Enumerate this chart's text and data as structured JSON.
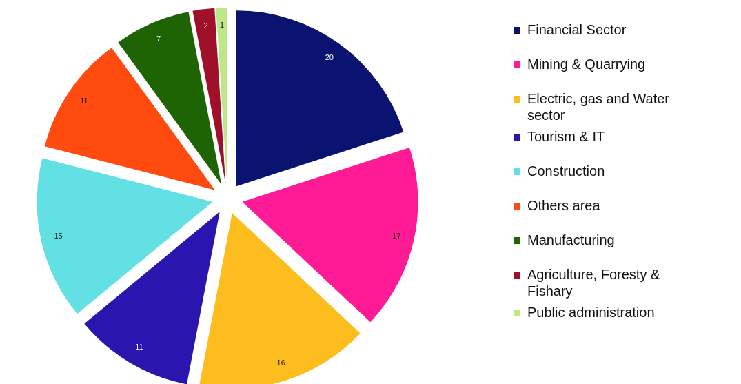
{
  "chart_data": {
    "type": "pie",
    "categories": [
      "Financial Sector",
      "Mining & Quarrying",
      "Electric, gas and Water sector",
      "Tourism & IT",
      "Construction",
      "Others area",
      "Manufacturing",
      "Agriculture, Foresty & Fishary",
      "Public administration"
    ],
    "values": [
      20,
      17,
      16,
      11,
      15,
      11,
      7,
      2,
      1
    ],
    "colors": [
      "#0a1470",
      "#ff1a96",
      "#fdbd1f",
      "#2a16ae",
      "#62e0e4",
      "#ff4a10",
      "#1f6404",
      "#a0102a",
      "#bde888"
    ],
    "data_labels": true,
    "legend": "right"
  }
}
